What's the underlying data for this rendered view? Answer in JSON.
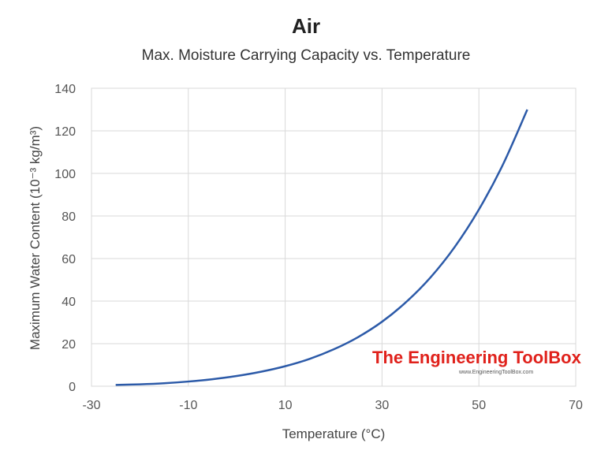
{
  "chart_data": {
    "type": "line",
    "title": "Air",
    "subtitle": "Max. Moisture Carrying Capacity vs. Temperature",
    "xlabel": "Temperature (°C)",
    "ylabel": "Maximum Water Content (10⁻³ kg/m³)",
    "xlim": [
      -30,
      70
    ],
    "ylim": [
      0,
      140
    ],
    "xticks": [
      -30,
      -10,
      10,
      30,
      50,
      70
    ],
    "yticks": [
      0,
      20,
      40,
      60,
      80,
      100,
      120,
      140
    ],
    "grid": true,
    "line_color": "#2c5aa8",
    "series": [
      {
        "x": [
          -25,
          -20,
          -15,
          -10,
          -5,
          0,
          5,
          10,
          15,
          20,
          25,
          30,
          35,
          40,
          45,
          50,
          55,
          60
        ],
        "y": [
          0.6,
          0.9,
          1.4,
          2.2,
          3.3,
          4.8,
          6.8,
          9.4,
          12.8,
          17.3,
          23.0,
          30.3,
          39.6,
          51.1,
          65.4,
          83.0,
          104.3,
          130.0
        ]
      }
    ]
  },
  "watermark": {
    "title": "The Engineering ToolBox",
    "url": "www.EngineeringToolBox.com"
  }
}
